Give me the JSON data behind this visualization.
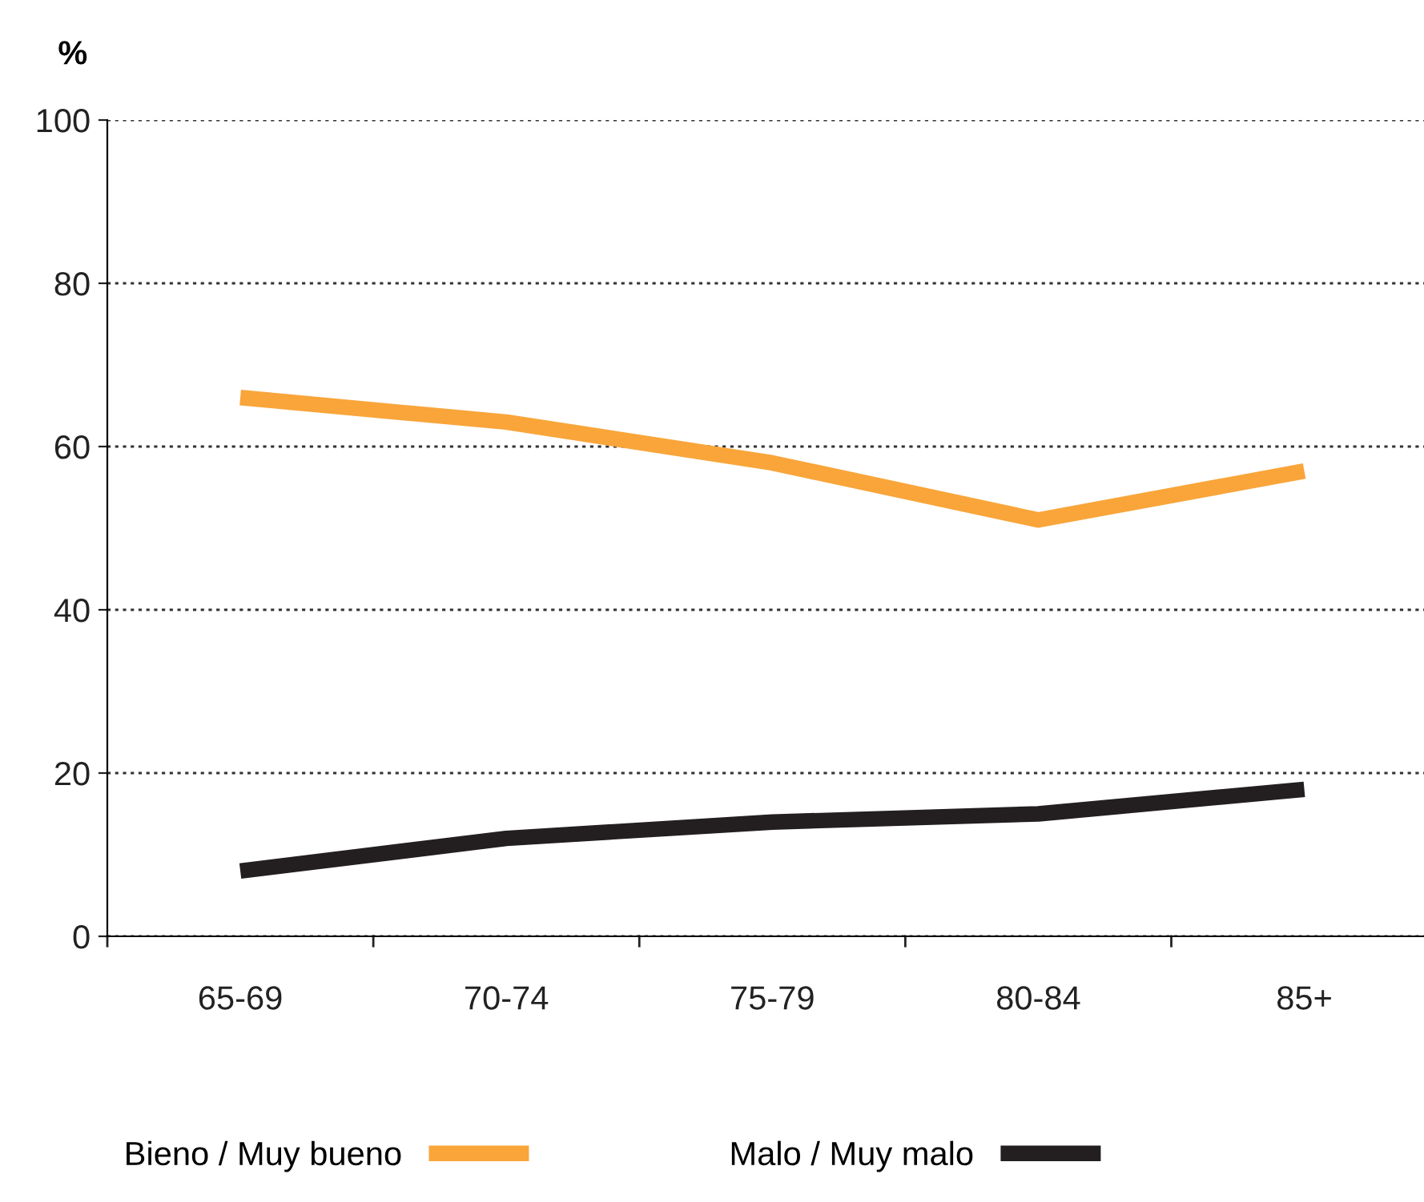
{
  "chart_data": {
    "type": "line",
    "ylabel": "%",
    "categories": [
      "65-69",
      "70-74",
      "75-79",
      "80-84",
      "85+"
    ],
    "series": [
      {
        "name": "Bieno / Muy bueno",
        "color": "#f9a53a",
        "values": [
          66,
          63,
          58,
          51,
          57
        ]
      },
      {
        "name": "Malo / Muy malo",
        "color": "#231f20",
        "values": [
          8,
          12,
          14,
          15,
          18
        ]
      }
    ],
    "ylim": [
      0,
      100
    ],
    "yticks": [
      0,
      20,
      40,
      60,
      80,
      100
    ],
    "grid": "y",
    "line_style": "solid",
    "legend": "bottom"
  }
}
